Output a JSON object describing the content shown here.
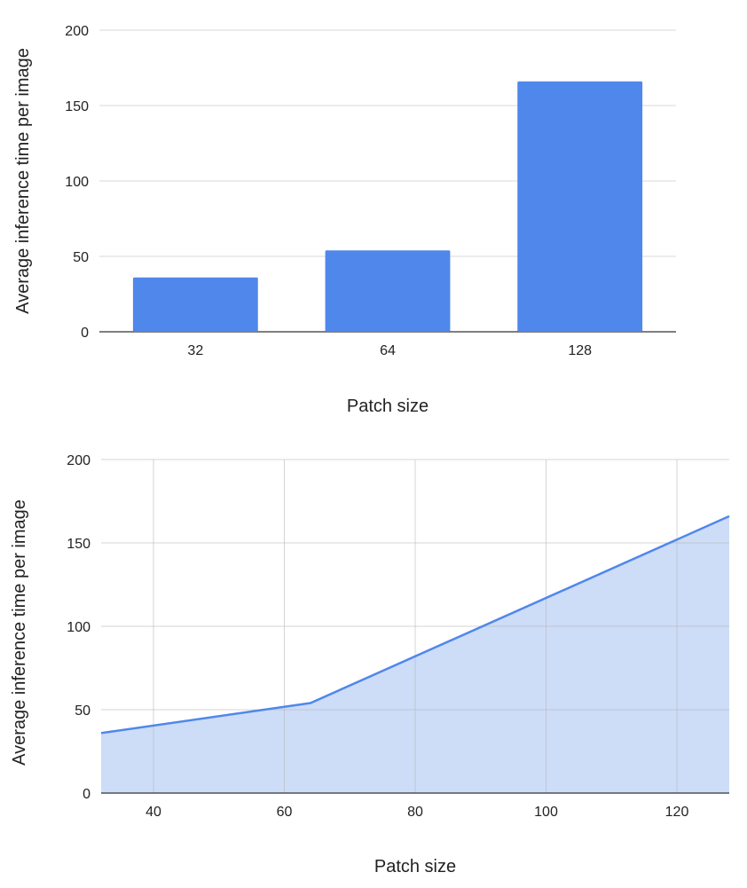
{
  "chart_data": [
    {
      "type": "bar",
      "categories": [
        "32",
        "64",
        "128"
      ],
      "values": [
        36,
        54,
        166
      ],
      "xlabel": "Patch size",
      "ylabel": "Average inference time per image",
      "ylim": [
        0,
        200
      ],
      "yticks": [
        "0",
        "50",
        "100",
        "150",
        "200"
      ],
      "grid": "horizontal",
      "color": "#5087eb"
    },
    {
      "type": "area",
      "x": [
        32,
        64,
        128
      ],
      "values": [
        36,
        54,
        166
      ],
      "xlabel": "Patch size",
      "ylabel": "Average inference time per image",
      "xlim": [
        32,
        128
      ],
      "ylim": [
        0,
        200
      ],
      "xticks": [
        "40",
        "60",
        "80",
        "100",
        "120"
      ],
      "yticks": [
        "0",
        "50",
        "100",
        "150",
        "200"
      ],
      "grid": "both",
      "line_color": "#5087eb",
      "fill_color": "#cddcf7"
    }
  ]
}
